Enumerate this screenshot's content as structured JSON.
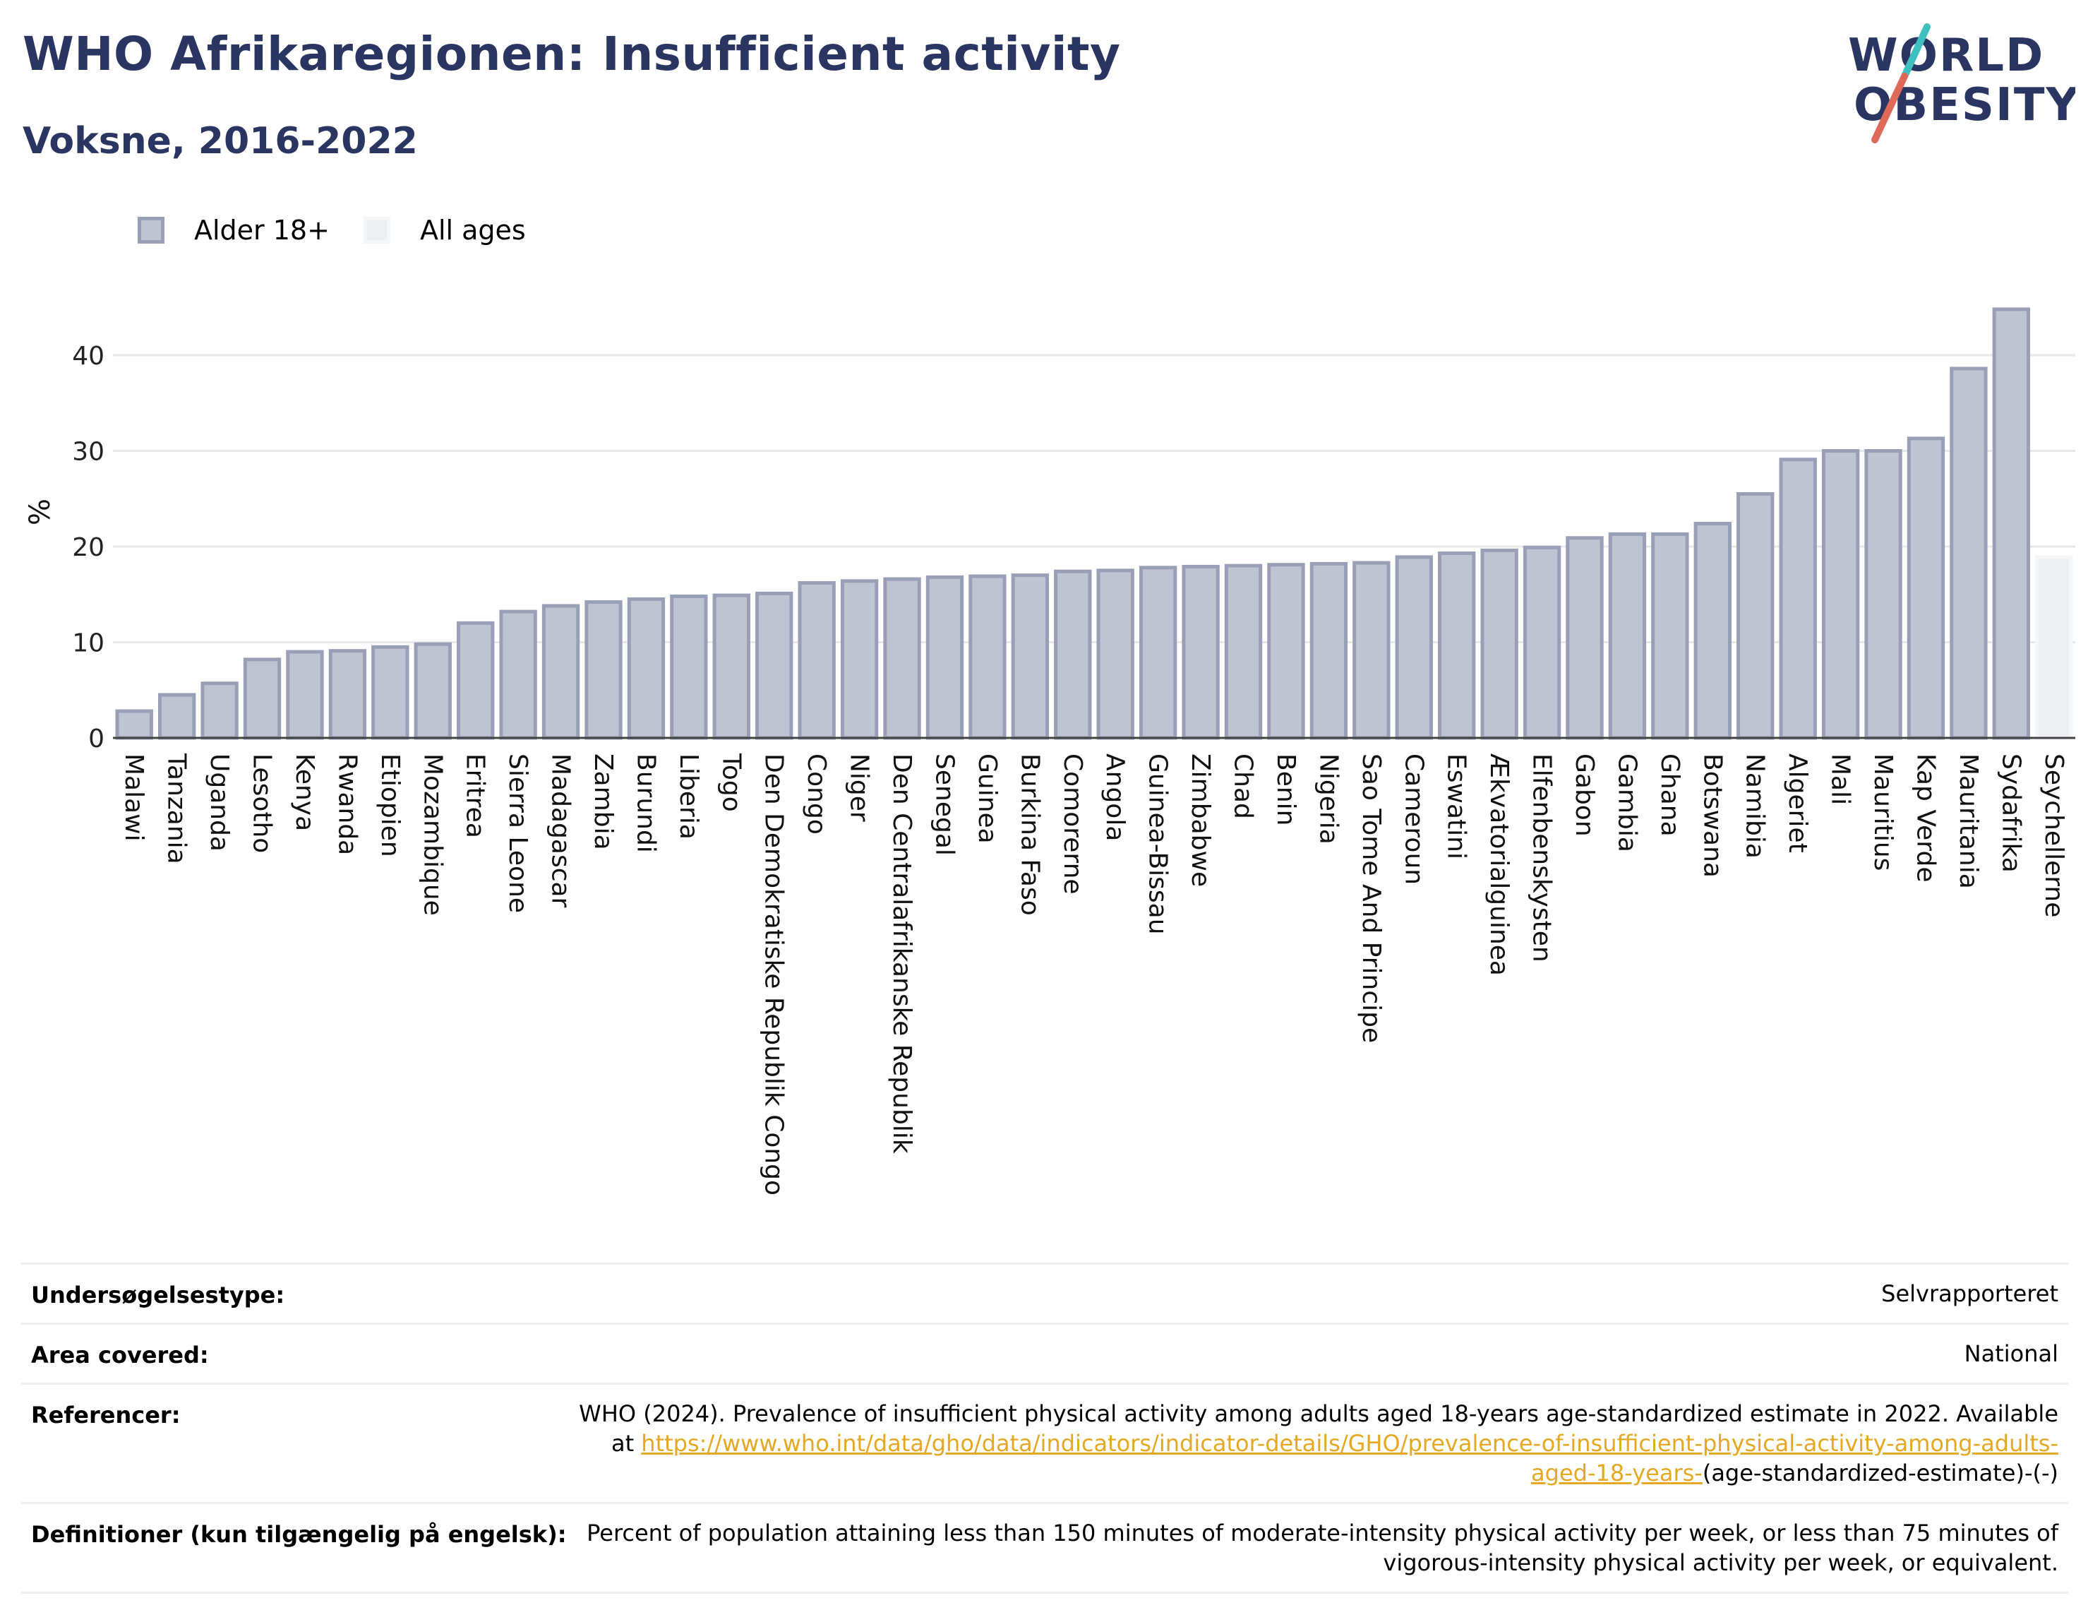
{
  "header": {
    "title": "WHO Afrikaregionen: Insufficient activity",
    "subtitle": "Voksne, 2016-2022"
  },
  "logo": {
    "line1": "WORLD",
    "line2": "OBESITY",
    "slash_colors": [
      "#3fbfbf",
      "#e06a5a"
    ]
  },
  "legend": [
    {
      "label": "Alder 18+",
      "fill": "#c0c3d2",
      "stroke": "#9a9fb8"
    },
    {
      "label": "All ages",
      "fill": "#eceef2",
      "stroke": "#f5f6f8"
    }
  ],
  "chart_data": {
    "type": "bar",
    "ylabel": "%",
    "ylim": [
      0,
      46
    ],
    "yticks": [
      0,
      10,
      20,
      30,
      40
    ],
    "grid": true,
    "legend_position": "top-left",
    "categories": [
      "Malawi",
      "Tanzania",
      "Uganda",
      "Lesotho",
      "Kenya",
      "Rwanda",
      "Etiopien",
      "Mozambique",
      "Eritrea",
      "Sierra Leone",
      "Madagascar",
      "Zambia",
      "Burundi",
      "Liberia",
      "Togo",
      "Den Demokratiske Republik Congo",
      "Congo",
      "Niger",
      "Den Centralafrikanske Republik",
      "Senegal",
      "Guinea",
      "Burkina Faso",
      "Comorerne",
      "Angola",
      "Guinea-Bissau",
      "Zimbabwe",
      "Chad",
      "Benin",
      "Nigeria",
      "Sao Tome And Principe",
      "Cameroun",
      "Eswatini",
      "Ækvatorialguinea",
      "Elfenbenskysten",
      "Gabon",
      "Gambia",
      "Ghana",
      "Botswana",
      "Namibia",
      "Algeriet",
      "Mali",
      "Mauritius",
      "Kap Verde",
      "Mauritania",
      "Sydafrika",
      "Seychellerne"
    ],
    "series": [
      {
        "name": "Alder 18+",
        "values": [
          2.8,
          4.5,
          5.7,
          8.2,
          9.0,
          9.1,
          9.5,
          9.8,
          12.0,
          13.2,
          13.8,
          14.2,
          14.5,
          14.8,
          14.9,
          15.1,
          16.2,
          16.4,
          16.6,
          16.8,
          16.9,
          17.0,
          17.4,
          17.5,
          17.8,
          17.9,
          18.0,
          18.1,
          18.2,
          18.3,
          18.9,
          19.3,
          19.6,
          19.9,
          20.9,
          21.3,
          21.3,
          22.4,
          25.5,
          29.1,
          30.0,
          30.0,
          31.3,
          38.6,
          44.8,
          null
        ]
      },
      {
        "name": "All ages",
        "values": [
          null,
          null,
          null,
          null,
          null,
          null,
          null,
          null,
          null,
          null,
          null,
          null,
          null,
          null,
          null,
          null,
          null,
          null,
          null,
          null,
          null,
          null,
          null,
          null,
          null,
          null,
          null,
          null,
          null,
          null,
          null,
          null,
          null,
          null,
          null,
          null,
          null,
          null,
          null,
          null,
          null,
          null,
          null,
          null,
          null,
          18.9
        ]
      }
    ]
  },
  "info": {
    "survey_type_label": "Undersøgelsestype:",
    "survey_type_value": "Selvrapporteret",
    "area_label": "Area covered:",
    "area_value": "National",
    "refs_label": "Referencer:",
    "refs_text": "WHO (2024). Prevalence of insufficient physical activity among adults aged 18-years age-standardized estimate in 2022. Available at ",
    "refs_link": "https://www.who.int/data/gho/data/indicators/indicator-details/GHO/prevalence-of-insufficient-physical-activity-among-adults-aged-18-years-",
    "refs_tail": "(age-standardized-estimate)-(-)",
    "defs_label": "Definitioner (kun tilgængelig på engelsk):",
    "defs_value": "Percent of population attaining less than 150 minutes of moderate-intensity physical activity per week, or less than 75 minutes of vigorous-intensity physical activity per week, or equivalent."
  }
}
